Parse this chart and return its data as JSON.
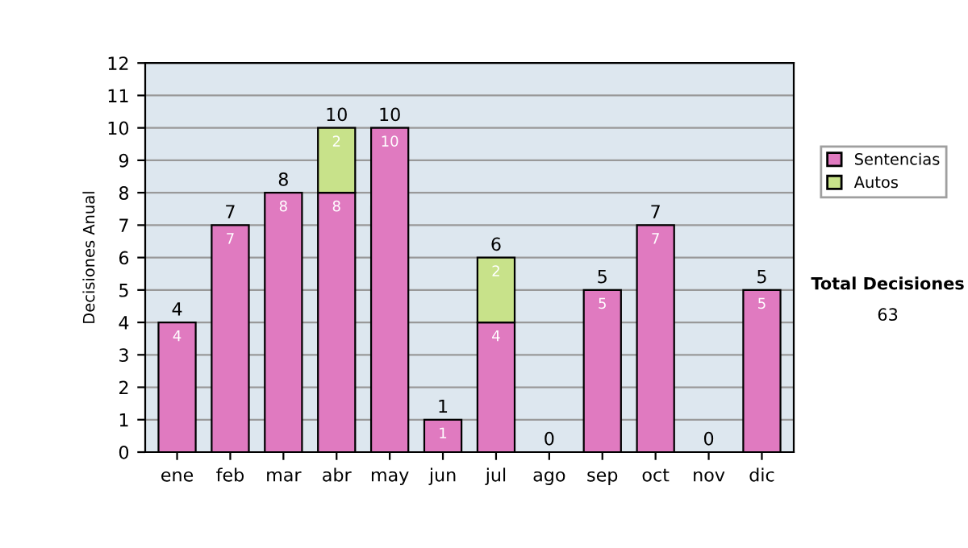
{
  "chart_data": {
    "type": "bar",
    "stacked": true,
    "ylabel": "Decisiones Anual",
    "categories": [
      "ene",
      "feb",
      "mar",
      "abr",
      "may",
      "jun",
      "jul",
      "ago",
      "sep",
      "oct",
      "nov",
      "dic"
    ],
    "series": [
      {
        "name": "Sentencias",
        "color": "#e07ac0",
        "values": [
          4,
          7,
          8,
          8,
          10,
          1,
          4,
          0,
          5,
          7,
          0,
          5
        ],
        "value_labels": [
          "4",
          "7",
          "8",
          "8",
          "10",
          "1",
          "4",
          null,
          "5",
          "7",
          null,
          "5"
        ]
      },
      {
        "name": "Autos",
        "color": "#c8e28a",
        "values": [
          0,
          0,
          0,
          2,
          0,
          0,
          2,
          0,
          0,
          0,
          0,
          0
        ],
        "value_labels": [
          null,
          null,
          null,
          "2",
          null,
          null,
          "2",
          null,
          null,
          null,
          null,
          null
        ]
      }
    ],
    "totals": [
      "4",
      "7",
      "8",
      "10",
      "10",
      "1",
      "6",
      "0",
      "5",
      "7",
      "0",
      "5"
    ],
    "ylim": [
      0,
      12
    ],
    "yticks": [
      0,
      1,
      2,
      3,
      4,
      5,
      6,
      7,
      8,
      9,
      10,
      11,
      12
    ],
    "grid": "y",
    "legend": "right",
    "annotations": [
      "Total Decisiones",
      "63"
    ]
  }
}
